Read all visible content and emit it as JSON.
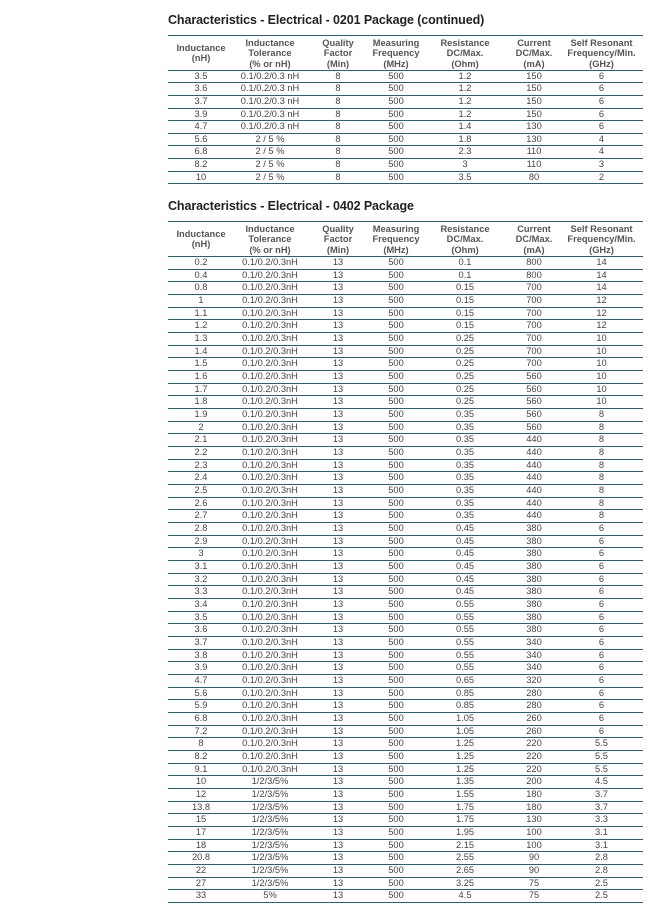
{
  "columns": [
    "Inductance\n(nH)",
    "Inductance\nTolerance\n(% or nH)",
    "Quality\nFactor\n(Min)",
    "Measuring\nFrequency\n(MHz)",
    "Resistance\nDC/Max.\n(Ohm)",
    "Current\nDC/Max.\n(mA)",
    "Self Resonant\nFrequency/Min.\n(GHz)"
  ],
  "tables": [
    {
      "title": "Characteristics - Electrical - 0201 Package (continued)",
      "rows": [
        [
          "3.5",
          "0.1/0.2/0.3 nH",
          "8",
          "500",
          "1.2",
          "150",
          "6"
        ],
        [
          "3.6",
          "0.1/0.2/0.3 nH",
          "8",
          "500",
          "1.2",
          "150",
          "6"
        ],
        [
          "3.7",
          "0.1/0.2/0.3 nH",
          "8",
          "500",
          "1.2",
          "150",
          "6"
        ],
        [
          "3.9",
          "0.1/0.2/0.3 nH",
          "8",
          "500",
          "1.2",
          "150",
          "6"
        ],
        [
          "4.7",
          "0.1/0.2/0.3 nH",
          "8",
          "500",
          "1.4",
          "130",
          "6"
        ],
        [
          "5.6",
          "2 / 5 %",
          "8",
          "500",
          "1.8",
          "130",
          "4"
        ],
        [
          "6.8",
          "2 / 5 %",
          "8",
          "500",
          "2.3",
          "110",
          "4"
        ],
        [
          "8.2",
          "2 / 5 %",
          "8",
          "500",
          "3",
          "110",
          "3"
        ],
        [
          "10",
          "2 / 5 %",
          "8",
          "500",
          "3.5",
          "80",
          "2"
        ]
      ]
    },
    {
      "title": "Characteristics - Electrical - 0402 Package",
      "rows": [
        [
          "0.2",
          "0.1/0.2/0.3nH",
          "13",
          "500",
          "0.1",
          "800",
          "14"
        ],
        [
          "0.4",
          "0.1/0.2/0.3nH",
          "13",
          "500",
          "0.1",
          "800",
          "14"
        ],
        [
          "0.8",
          "0.1/0.2/0.3nH",
          "13",
          "500",
          "0.15",
          "700",
          "14"
        ],
        [
          "1",
          "0.1/0.2/0.3nH",
          "13",
          "500",
          "0.15",
          "700",
          "12"
        ],
        [
          "1.1",
          "0.1/0.2/0.3nH",
          "13",
          "500",
          "0.15",
          "700",
          "12"
        ],
        [
          "1.2",
          "0.1/0.2/0.3nH",
          "13",
          "500",
          "0.15",
          "700",
          "12"
        ],
        [
          "1.3",
          "0.1/0.2/0.3nH",
          "13",
          "500",
          "0.25",
          "700",
          "10"
        ],
        [
          "1.4",
          "0.1/0.2/0.3nH",
          "13",
          "500",
          "0.25",
          "700",
          "10"
        ],
        [
          "1.5",
          "0.1/0.2/0.3nH",
          "13",
          "500",
          "0.25",
          "700",
          "10"
        ],
        [
          "1.6",
          "0.1/0.2/0.3nH",
          "13",
          "500",
          "0.25",
          "560",
          "10"
        ],
        [
          "1.7",
          "0.1/0.2/0.3nH",
          "13",
          "500",
          "0.25",
          "560",
          "10"
        ],
        [
          "1.8",
          "0.1/0.2/0.3nH",
          "13",
          "500",
          "0.25",
          "560",
          "10"
        ],
        [
          "1.9",
          "0.1/0.2/0.3nH",
          "13",
          "500",
          "0.35",
          "560",
          "8"
        ],
        [
          "2",
          "0.1/0.2/0.3nH",
          "13",
          "500",
          "0.35",
          "560",
          "8"
        ],
        [
          "2.1",
          "0.1/0.2/0.3nH",
          "13",
          "500",
          "0.35",
          "440",
          "8"
        ],
        [
          "2.2",
          "0.1/0.2/0.3nH",
          "13",
          "500",
          "0.35",
          "440",
          "8"
        ],
        [
          "2.3",
          "0.1/0.2/0.3nH",
          "13",
          "500",
          "0.35",
          "440",
          "8"
        ],
        [
          "2.4",
          "0.1/0.2/0.3nH",
          "13",
          "500",
          "0.35",
          "440",
          "8"
        ],
        [
          "2.5",
          "0.1/0.2/0.3nH",
          "13",
          "500",
          "0.35",
          "440",
          "8"
        ],
        [
          "2.6",
          "0.1/0.2/0.3nH",
          "13",
          "500",
          "0.35",
          "440",
          "8"
        ],
        [
          "2.7",
          "0.1/0.2/0.3nH",
          "13",
          "500",
          "0.35",
          "440",
          "8"
        ],
        [
          "2.8",
          "0.1/0.2/0.3nH",
          "13",
          "500",
          "0.45",
          "380",
          "6"
        ],
        [
          "2.9",
          "0.1/0.2/0.3nH",
          "13",
          "500",
          "0.45",
          "380",
          "6"
        ],
        [
          "3",
          "0.1/0.2/0.3nH",
          "13",
          "500",
          "0.45",
          "380",
          "6"
        ],
        [
          "3.1",
          "0.1/0.2/0.3nH",
          "13",
          "500",
          "0.45",
          "380",
          "6"
        ],
        [
          "3.2",
          "0.1/0.2/0.3nH",
          "13",
          "500",
          "0.45",
          "380",
          "6"
        ],
        [
          "3.3",
          "0.1/0.2/0.3nH",
          "13",
          "500",
          "0.45",
          "380",
          "6"
        ],
        [
          "3.4",
          "0.1/0.2/0.3nH",
          "13",
          "500",
          "0.55",
          "380",
          "6"
        ],
        [
          "3.5",
          "0.1/0.2/0.3nH",
          "13",
          "500",
          "0.55",
          "380",
          "6"
        ],
        [
          "3.6",
          "0.1/0.2/0.3nH",
          "13",
          "500",
          "0.55",
          "380",
          "6"
        ],
        [
          "3.7",
          "0.1/0.2/0.3nH",
          "13",
          "500",
          "0.55",
          "340",
          "6"
        ],
        [
          "3.8",
          "0.1/0.2/0.3nH",
          "13",
          "500",
          "0.55",
          "340",
          "6"
        ],
        [
          "3.9",
          "0.1/0.2/0.3nH",
          "13",
          "500",
          "0.55",
          "340",
          "6"
        ],
        [
          "4.7",
          "0.1/0.2/0.3nH",
          "13",
          "500",
          "0.65",
          "320",
          "6"
        ],
        [
          "5.6",
          "0.1/0.2/0.3nH",
          "13",
          "500",
          "0.85",
          "280",
          "6"
        ],
        [
          "5.9",
          "0.1/0.2/0.3nH",
          "13",
          "500",
          "0.85",
          "280",
          "6"
        ],
        [
          "6.8",
          "0.1/0.2/0.3nH",
          "13",
          "500",
          "1.05",
          "260",
          "6"
        ],
        [
          "7.2",
          "0.1/0.2/0.3nH",
          "13",
          "500",
          "1.05",
          "260",
          "6"
        ],
        [
          "8",
          "0.1/0.2/0.3nH",
          "13",
          "500",
          "1.25",
          "220",
          "5.5"
        ],
        [
          "8.2",
          "0.1/0.2/0.3nH",
          "13",
          "500",
          "1.25",
          "220",
          "5.5"
        ],
        [
          "9.1",
          "0.1/0.2/0.3nH",
          "13",
          "500",
          "1.25",
          "220",
          "5.5"
        ],
        [
          "10",
          "1/2/3/5%",
          "13",
          "500",
          "1.35",
          "200",
          "4.5"
        ],
        [
          "12",
          "1/2/3/5%",
          "13",
          "500",
          "1.55",
          "180",
          "3.7"
        ],
        [
          "13.8",
          "1/2/3/5%",
          "13",
          "500",
          "1.75",
          "180",
          "3.7"
        ],
        [
          "15",
          "1/2/3/5%",
          "13",
          "500",
          "1.75",
          "130",
          "3.3"
        ],
        [
          "17",
          "1/2/3/5%",
          "13",
          "500",
          "1.95",
          "100",
          "3.1"
        ],
        [
          "18",
          "1/2/3/5%",
          "13",
          "500",
          "2.15",
          "100",
          "3.1"
        ],
        [
          "20.8",
          "1/2/3/5%",
          "13",
          "500",
          "2.55",
          "90",
          "2.8"
        ],
        [
          "22",
          "1/2/3/5%",
          "13",
          "500",
          "2.65",
          "90",
          "2.8"
        ],
        [
          "27",
          "1/2/3/5%",
          "13",
          "500",
          "3.25",
          "75",
          "2.5"
        ],
        [
          "33",
          "5%",
          "13",
          "500",
          "4.5",
          "75",
          "2.5"
        ]
      ]
    }
  ]
}
